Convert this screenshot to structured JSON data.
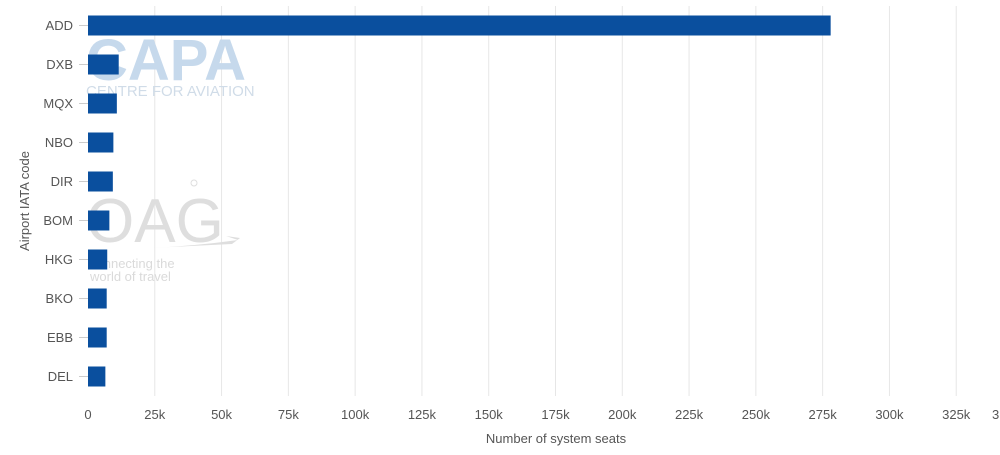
{
  "watermarks": {
    "capa_logo": "CAPA",
    "capa_sub": "CENTRE FOR AVIATION",
    "oag_logo": "OAG",
    "oag_tagline_1": "connecting the",
    "oag_tagline_2": "world of travel"
  },
  "chart_data": {
    "type": "bar",
    "orientation": "horizontal",
    "categories": [
      "ADD",
      "DXB",
      "MQX",
      "NBO",
      "DIR",
      "BOM",
      "HKG",
      "BKO",
      "EBB",
      "DEL"
    ],
    "values": [
      278000,
      11500,
      10800,
      9500,
      9300,
      8000,
      7200,
      7000,
      7000,
      6500
    ],
    "xlabel": "Number of system seats",
    "ylabel": "Airport IATA code",
    "xlim": [
      0,
      350000
    ],
    "x_ticks": [
      0,
      25000,
      50000,
      75000,
      100000,
      125000,
      150000,
      175000,
      200000,
      225000,
      250000,
      275000,
      300000,
      325000
    ],
    "x_tick_labels": [
      "0",
      "25k",
      "50k",
      "75k",
      "100k",
      "125k",
      "150k",
      "175k",
      "200k",
      "225k",
      "250k",
      "275k",
      "300k",
      "325k"
    ],
    "x_tick_partial_label": "3",
    "bar_color": "#0a4f9e",
    "grid": true,
    "legend": false
  }
}
